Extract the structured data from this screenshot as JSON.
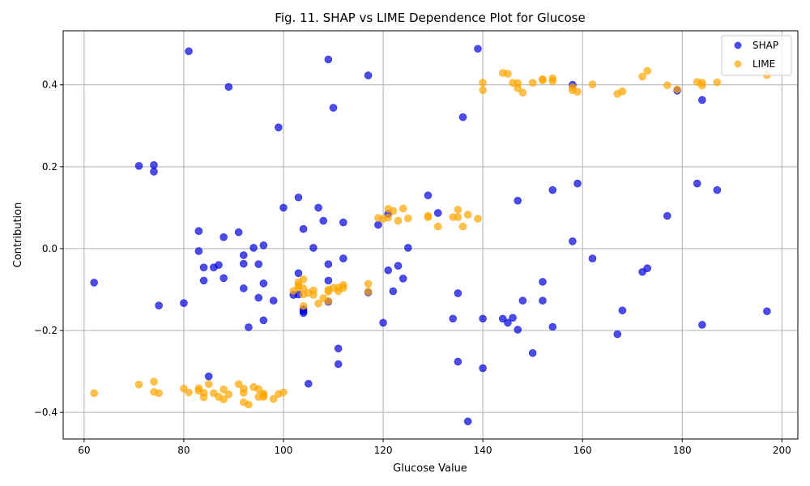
{
  "chart_data": {
    "type": "scatter",
    "title": "Fig. 11. SHAP vs LIME Dependence Plot for Glucose",
    "xlabel": "Glucose Value",
    "ylabel": "Contribution",
    "xlim": [
      55.8,
      203.2
    ],
    "ylim": [
      -0.465,
      0.532
    ],
    "xticks": [
      60,
      80,
      100,
      120,
      140,
      160,
      180,
      200
    ],
    "yticks": [
      -0.4,
      -0.2,
      0.0,
      0.2,
      0.4
    ],
    "ytick_labels": [
      "−0.4",
      "−0.2",
      "0.0",
      "0.2",
      "0.4"
    ],
    "grid": true,
    "legend_position": "top-right",
    "series": [
      {
        "name": "SHAP",
        "color": "#0000dd",
        "points": [
          [
            62,
            -0.083
          ],
          [
            71,
            0.202
          ],
          [
            74,
            0.204
          ],
          [
            74,
            0.188
          ],
          [
            75,
            -0.139
          ],
          [
            80,
            -0.133
          ],
          [
            81,
            0.482
          ],
          [
            83,
            0.043
          ],
          [
            83,
            -0.006
          ],
          [
            84,
            -0.046
          ],
          [
            84,
            -0.078
          ],
          [
            85,
            -0.312
          ],
          [
            86,
            -0.046
          ],
          [
            87,
            -0.04
          ],
          [
            88,
            0.028
          ],
          [
            88,
            -0.072
          ],
          [
            89,
            0.395
          ],
          [
            91,
            0.04
          ],
          [
            92,
            -0.016
          ],
          [
            92,
            -0.037
          ],
          [
            92,
            -0.097
          ],
          [
            93,
            -0.192
          ],
          [
            94,
            0.002
          ],
          [
            95,
            -0.038
          ],
          [
            95,
            -0.12
          ],
          [
            96,
            0.008
          ],
          [
            96,
            -0.085
          ],
          [
            96,
            -0.175
          ],
          [
            98,
            -0.127
          ],
          [
            99,
            0.296
          ],
          [
            100,
            0.1
          ],
          [
            102,
            -0.113
          ],
          [
            103,
            0.125
          ],
          [
            103,
            -0.06
          ],
          [
            103,
            -0.112
          ],
          [
            104,
            0.048
          ],
          [
            104,
            -0.148
          ],
          [
            104,
            -0.153
          ],
          [
            104,
            -0.157
          ],
          [
            105,
            -0.33
          ],
          [
            106,
            0.002
          ],
          [
            107,
            0.1
          ],
          [
            108,
            0.068
          ],
          [
            109,
            0.462
          ],
          [
            109,
            -0.038
          ],
          [
            109,
            -0.078
          ],
          [
            109,
            -0.13
          ],
          [
            110,
            0.344
          ],
          [
            111,
            -0.244
          ],
          [
            111,
            -0.282
          ],
          [
            112,
            0.064
          ],
          [
            112,
            -0.024
          ],
          [
            117,
            0.423
          ],
          [
            117,
            -0.107
          ],
          [
            119,
            0.058
          ],
          [
            120,
            -0.181
          ],
          [
            121,
            0.085
          ],
          [
            121,
            -0.053
          ],
          [
            122,
            -0.104
          ],
          [
            123,
            -0.042
          ],
          [
            124,
            -0.073
          ],
          [
            125,
            0.002
          ],
          [
            129,
            0.13
          ],
          [
            131,
            0.087
          ],
          [
            134,
            -0.171
          ],
          [
            135,
            -0.109
          ],
          [
            135,
            -0.276
          ],
          [
            136,
            0.321
          ],
          [
            137,
            -0.422
          ],
          [
            139,
            0.488
          ],
          [
            140,
            -0.171
          ],
          [
            140,
            -0.292
          ],
          [
            144,
            -0.171
          ],
          [
            145,
            -0.181
          ],
          [
            146,
            -0.169
          ],
          [
            147,
            0.117
          ],
          [
            147,
            -0.198
          ],
          [
            148,
            -0.127
          ],
          [
            150,
            -0.255
          ],
          [
            152,
            -0.081
          ],
          [
            152,
            -0.127
          ],
          [
            154,
            0.143
          ],
          [
            154,
            -0.191
          ],
          [
            158,
            0.4
          ],
          [
            158,
            0.018
          ],
          [
            159,
            0.159
          ],
          [
            162,
            -0.024
          ],
          [
            167,
            -0.209
          ],
          [
            168,
            -0.151
          ],
          [
            172,
            -0.057
          ],
          [
            173,
            -0.048
          ],
          [
            177,
            0.08
          ],
          [
            179,
            0.386
          ],
          [
            183,
            0.159
          ],
          [
            184,
            0.363
          ],
          [
            184,
            -0.186
          ],
          [
            187,
            0.143
          ],
          [
            197,
            -0.153
          ]
        ]
      },
      {
        "name": "LIME",
        "color": "#ffa500",
        "points": [
          [
            62,
            -0.353
          ],
          [
            71,
            -0.332
          ],
          [
            74,
            -0.325
          ],
          [
            74,
            -0.35
          ],
          [
            75,
            -0.353
          ],
          [
            80,
            -0.342
          ],
          [
            81,
            -0.351
          ],
          [
            83,
            -0.341
          ],
          [
            83,
            -0.347
          ],
          [
            84,
            -0.352
          ],
          [
            84,
            -0.363
          ],
          [
            85,
            -0.331
          ],
          [
            86,
            -0.353
          ],
          [
            87,
            -0.362
          ],
          [
            88,
            -0.344
          ],
          [
            88,
            -0.368
          ],
          [
            89,
            -0.356
          ],
          [
            91,
            -0.331
          ],
          [
            92,
            -0.342
          ],
          [
            92,
            -0.352
          ],
          [
            92,
            -0.375
          ],
          [
            93,
            -0.381
          ],
          [
            94,
            -0.338
          ],
          [
            95,
            -0.343
          ],
          [
            95,
            -0.362
          ],
          [
            96,
            -0.354
          ],
          [
            96,
            -0.358
          ],
          [
            96,
            -0.362
          ],
          [
            98,
            -0.367
          ],
          [
            99,
            -0.355
          ],
          [
            100,
            -0.351
          ],
          [
            102,
            -0.103
          ],
          [
            103,
            -0.082
          ],
          [
            103,
            -0.09
          ],
          [
            103,
            -0.095
          ],
          [
            104,
            -0.075
          ],
          [
            104,
            -0.097
          ],
          [
            104,
            -0.112
          ],
          [
            104,
            -0.14
          ],
          [
            105,
            -0.108
          ],
          [
            106,
            -0.102
          ],
          [
            106,
            -0.113
          ],
          [
            107,
            -0.134
          ],
          [
            108,
            -0.121
          ],
          [
            109,
            -0.1
          ],
          [
            109,
            -0.105
          ],
          [
            109,
            -0.128
          ],
          [
            110,
            -0.096
          ],
          [
            111,
            -0.095
          ],
          [
            111,
            -0.104
          ],
          [
            112,
            -0.089
          ],
          [
            112,
            -0.096
          ],
          [
            117,
            -0.086
          ],
          [
            117,
            -0.105
          ],
          [
            119,
            0.075
          ],
          [
            120,
            0.073
          ],
          [
            121,
            0.097
          ],
          [
            121,
            0.076
          ],
          [
            122,
            0.092
          ],
          [
            123,
            0.068
          ],
          [
            124,
            0.098
          ],
          [
            125,
            0.074
          ],
          [
            129,
            0.08
          ],
          [
            129,
            0.077
          ],
          [
            131,
            0.054
          ],
          [
            134,
            0.077
          ],
          [
            135,
            0.095
          ],
          [
            135,
            0.077
          ],
          [
            136,
            0.054
          ],
          [
            137,
            0.083
          ],
          [
            139,
            0.073
          ],
          [
            140,
            0.405
          ],
          [
            140,
            0.387
          ],
          [
            144,
            0.429
          ],
          [
            145,
            0.427
          ],
          [
            146,
            0.405
          ],
          [
            147,
            0.404
          ],
          [
            147,
            0.392
          ],
          [
            148,
            0.381
          ],
          [
            150,
            0.405
          ],
          [
            152,
            0.414
          ],
          [
            152,
            0.411
          ],
          [
            154,
            0.416
          ],
          [
            154,
            0.409
          ],
          [
            158,
            0.394
          ],
          [
            158,
            0.387
          ],
          [
            159,
            0.383
          ],
          [
            162,
            0.401
          ],
          [
            167,
            0.378
          ],
          [
            168,
            0.384
          ],
          [
            172,
            0.42
          ],
          [
            173,
            0.434
          ],
          [
            177,
            0.399
          ],
          [
            179,
            0.389
          ],
          [
            183,
            0.407
          ],
          [
            184,
            0.405
          ],
          [
            184,
            0.398
          ],
          [
            187,
            0.406
          ],
          [
            197,
            0.424
          ]
        ]
      }
    ]
  }
}
